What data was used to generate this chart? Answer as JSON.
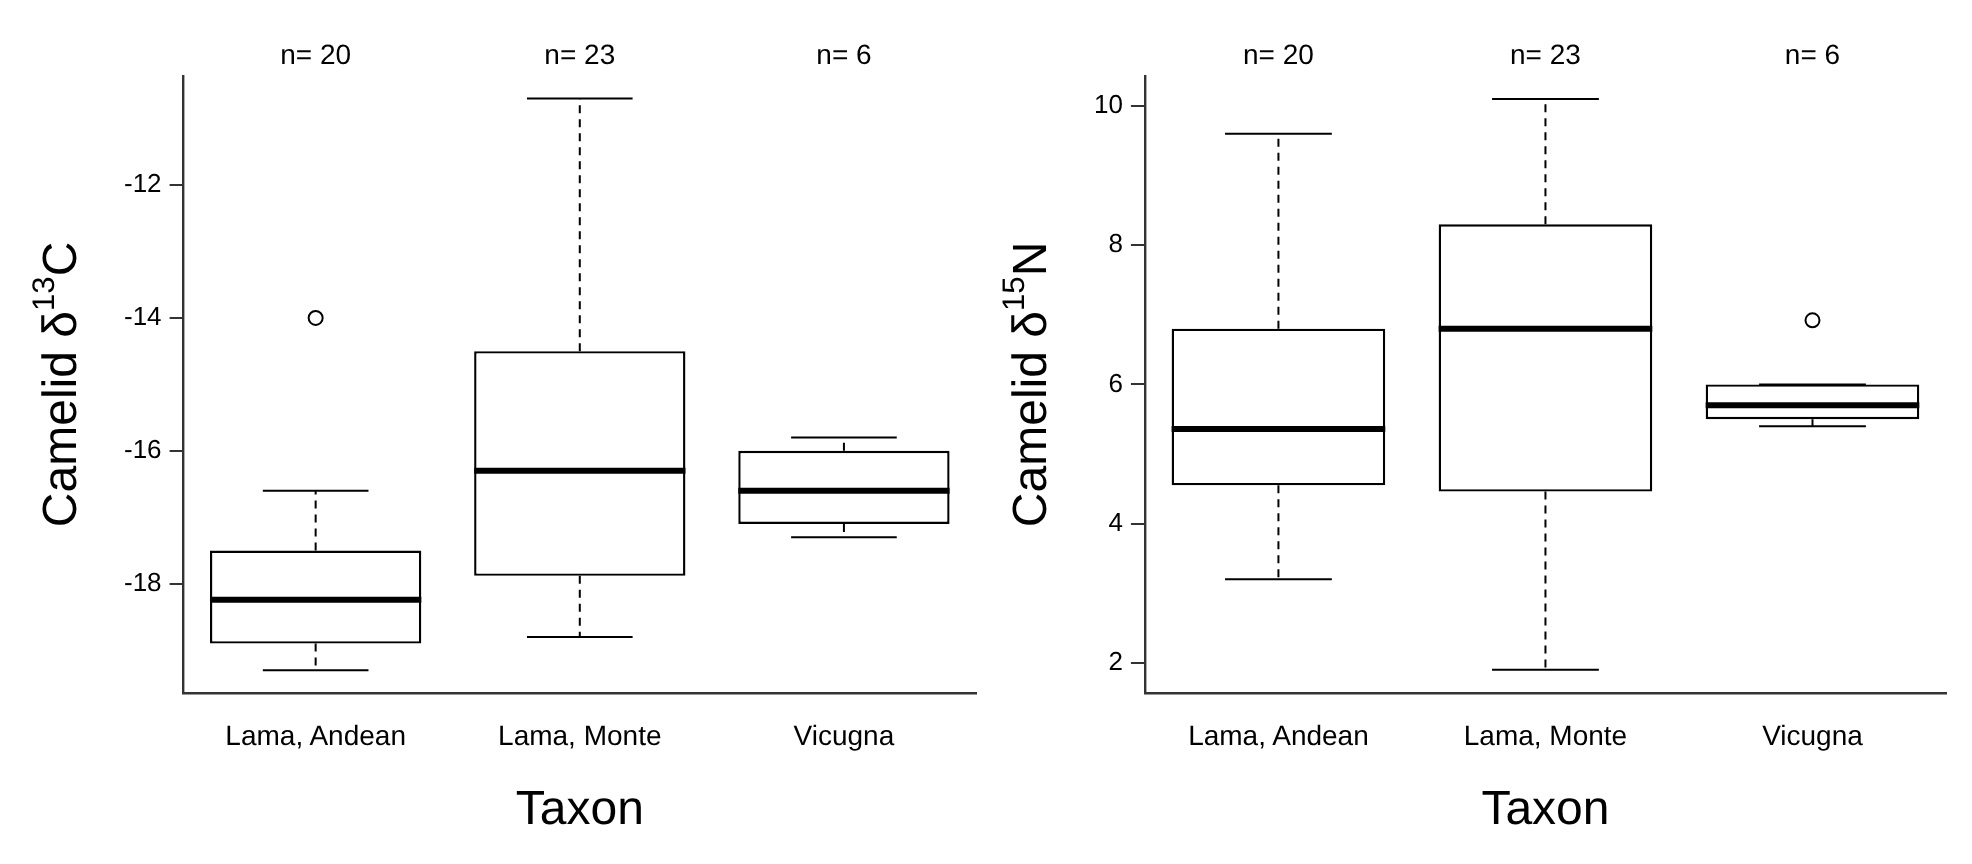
{
  "chart_data": [
    {
      "type": "box",
      "xlabel": "Taxon",
      "ylabel": "Camelid δ$^{13}$C",
      "categories": [
        "Lama, Andean",
        "Lama, Monte",
        "Vicugna"
      ],
      "boxes": [
        {
          "low": -19.3,
          "q1": -18.9,
          "median": -18.24,
          "q3": -17.5,
          "high": -16.6,
          "outliers": [
            -14.0
          ]
        },
        {
          "low": -18.8,
          "q1": -17.88,
          "median": -16.3,
          "q3": -14.5,
          "high": -10.7
        },
        {
          "low": -17.3,
          "q1": -17.1,
          "median": -16.6,
          "q3": -16.0,
          "high": -15.8
        }
      ],
      "ylim": [
        -19.64,
        -10.36
      ],
      "yticks": [
        -18,
        -16,
        -14,
        -12
      ],
      "annotations": [
        "n= 20",
        "n= 23",
        "n= 6"
      ]
    },
    {
      "type": "box",
      "xlabel": "Taxon",
      "ylabel": "Camelid δ$^{15}$N",
      "categories": [
        "Lama, Andean",
        "Lama, Monte",
        "Vicugna"
      ],
      "boxes": [
        {
          "low": 3.2,
          "q1": 4.55,
          "median": 5.36,
          "q3": 6.8,
          "high": 9.6
        },
        {
          "low": 1.9,
          "q1": 4.46,
          "median": 6.8,
          "q3": 8.3,
          "high": 10.1
        },
        {
          "low": 5.4,
          "q1": 5.5,
          "median": 5.7,
          "q3": 6.0,
          "high": 6.0,
          "outliers": [
            6.92
          ]
        }
      ],
      "ylim": [
        1.57,
        10.43
      ],
      "yticks": [
        2,
        4,
        6,
        8,
        10
      ],
      "annotations": [
        "n= 20",
        "n= 23",
        "n= 6"
      ]
    }
  ]
}
